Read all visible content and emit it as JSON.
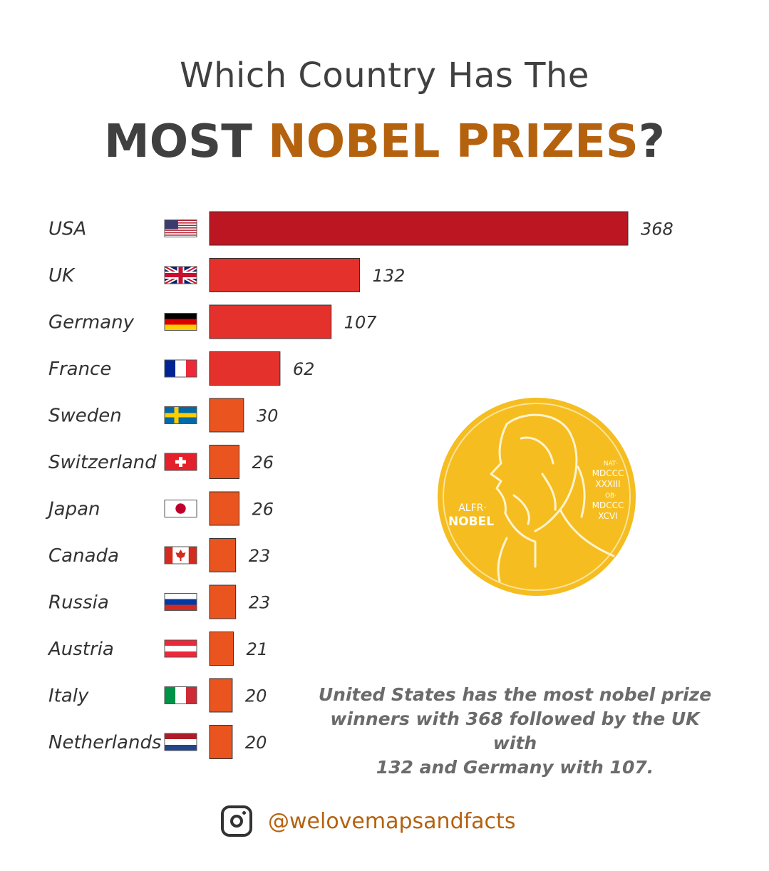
{
  "title": {
    "line1": "Which Country Has The",
    "line2_part1": "MOST ",
    "line2_accent": "NOBEL PRIZES",
    "line2_end": "?"
  },
  "chart_data": {
    "type": "bar",
    "orientation": "horizontal",
    "categories": [
      "USA",
      "UK",
      "Germany",
      "France",
      "Sweden",
      "Switzerland",
      "Japan",
      "Canada",
      "Russia",
      "Austria",
      "Italy",
      "Netherlands"
    ],
    "values": [
      368,
      132,
      107,
      62,
      30,
      26,
      26,
      23,
      23,
      21,
      20,
      20
    ],
    "flags": [
      "usa-flag",
      "uk-flag",
      "germany-flag",
      "france-flag",
      "sweden-flag",
      "switzerland-flag",
      "japan-flag",
      "canada-flag",
      "russia-flag",
      "austria-flag",
      "italy-flag",
      "netherlands-flag"
    ],
    "colors": [
      "#bb1622",
      "#e4312b",
      "#e4312b",
      "#e4312b",
      "#e9541f",
      "#e9541f",
      "#e9541f",
      "#e9541f",
      "#e9541f",
      "#e9541f",
      "#e9541f",
      "#e9541f"
    ],
    "title": "",
    "xlabel": "",
    "ylabel": "",
    "grid": false,
    "legend": "none"
  },
  "medal": {
    "inscription_left_1": "ALFR·",
    "inscription_left_2": "NOBEL",
    "inscription_right": [
      "NAT·",
      "MDCCC",
      "XXXIII",
      "OB·",
      "MDCCC",
      "XCVI"
    ],
    "color": "#f5bd1f"
  },
  "caption": {
    "line1": "United States has the most nobel prize",
    "line2": "winners with 368 followed by the UK with",
    "line3": "132 and Germany with 107."
  },
  "footer": {
    "icon": "instagram-icon",
    "handle": "@welovemapsandfacts"
  }
}
